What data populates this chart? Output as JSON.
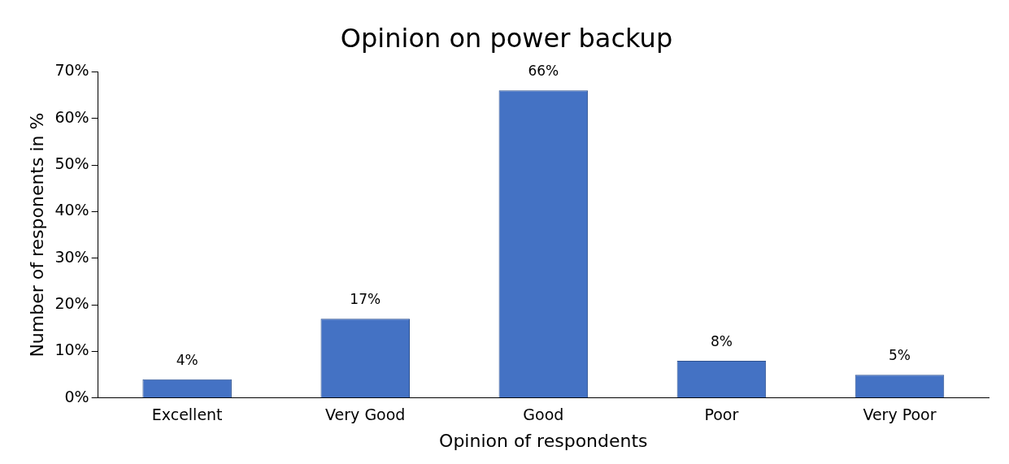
{
  "chart_data": {
    "type": "bar",
    "title": "Opinion on power backup",
    "xlabel": "Opinion of respondents",
    "ylabel": "Number of responents in %",
    "categories": [
      "Excellent",
      "Very Good",
      "Good",
      "Poor",
      "Very Poor"
    ],
    "values": [
      4,
      17,
      66,
      8,
      5
    ],
    "color": "#4472c4",
    "ylim": [
      0,
      70
    ],
    "yticks": [
      {
        "value": 0,
        "label": "0%"
      },
      {
        "value": 10,
        "label": "10%"
      },
      {
        "value": 20,
        "label": "20%"
      },
      {
        "value": 30,
        "label": "30%"
      },
      {
        "value": 40,
        "label": "40%"
      },
      {
        "value": 50,
        "label": "50%"
      },
      {
        "value": 60,
        "label": "60%"
      },
      {
        "value": 70,
        "label": "70%"
      }
    ],
    "value_labels": [
      "4%",
      "17%",
      "66%",
      "8%",
      "5%"
    ],
    "grid": false,
    "legend": false
  }
}
